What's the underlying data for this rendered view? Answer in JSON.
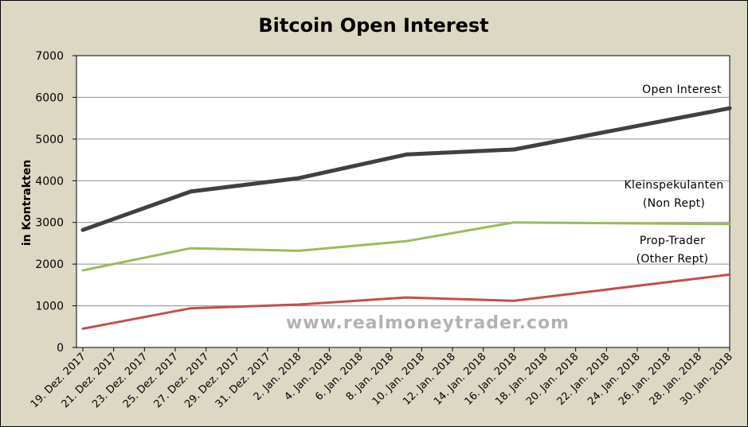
{
  "chart_data": {
    "type": "line",
    "title": "Bitcoin Open Interest",
    "ylabel": "in Kontrakten",
    "ylim": [
      0,
      7000
    ],
    "yticks": [
      0,
      1000,
      2000,
      3000,
      4000,
      5000,
      6000,
      7000
    ],
    "grid": true,
    "x": [
      "19. Dez. 2017",
      "21. Dez. 2017",
      "23. Dez. 2017",
      "25. Dez. 2017",
      "27. Dez. 2017",
      "29. Dez. 2017",
      "31. Dez. 2017",
      "2. Jan. 2018",
      "4. Jan. 2018",
      "6. Jan. 2018",
      "8. Jan. 2018",
      "10. Jan. 2018",
      "12. Jan. 2018",
      "14. Jan. 2018",
      "16. Jan. 2018",
      "18. Jan. 2018",
      "20. Jan. 2018",
      "22. Jan. 2018",
      "24. Jan. 2018",
      "26. Jan. 2018",
      "28. Jan. 2018",
      "30. Jan. 2018"
    ],
    "series": [
      {
        "name": "Open Interest",
        "color": "#404040",
        "points": [
          [
            "19. Dez. 2017",
            2820
          ],
          [
            "26. Dez. 2017",
            3740
          ],
          [
            "2. Jan. 2018",
            4060
          ],
          [
            "9. Jan. 2018",
            4630
          ],
          [
            "16. Jan. 2018",
            4750
          ],
          [
            "30. Jan. 2018",
            5740
          ]
        ]
      },
      {
        "name": "Kleinspekulanten (Non Rept)",
        "color": "#9bbb59",
        "points": [
          [
            "19. Dez. 2017",
            1850
          ],
          [
            "26. Dez. 2017",
            2380
          ],
          [
            "2. Jan. 2018",
            2320
          ],
          [
            "9. Jan. 2018",
            2550
          ],
          [
            "16. Jan. 2018",
            3000
          ],
          [
            "30. Jan. 2018",
            2960
          ]
        ]
      },
      {
        "name": "Prop-Trader (Other Rept)",
        "color": "#c0504d",
        "points": [
          [
            "19. Dez. 2017",
            450
          ],
          [
            "26. Dez. 2017",
            940
          ],
          [
            "2. Jan. 2018",
            1030
          ],
          [
            "9. Jan. 2018",
            1200
          ],
          [
            "16. Jan. 2018",
            1120
          ],
          [
            "30. Jan. 2018",
            1750
          ]
        ]
      }
    ],
    "annotations": [
      {
        "lines": [
          "Open Interest"
        ]
      },
      {
        "lines": [
          "Kleinspekulanten",
          "(Non Rept)"
        ]
      },
      {
        "lines": [
          "Prop-Trader",
          "(Other Rept)"
        ]
      }
    ],
    "watermark": "www.realmoneytrader.com"
  }
}
